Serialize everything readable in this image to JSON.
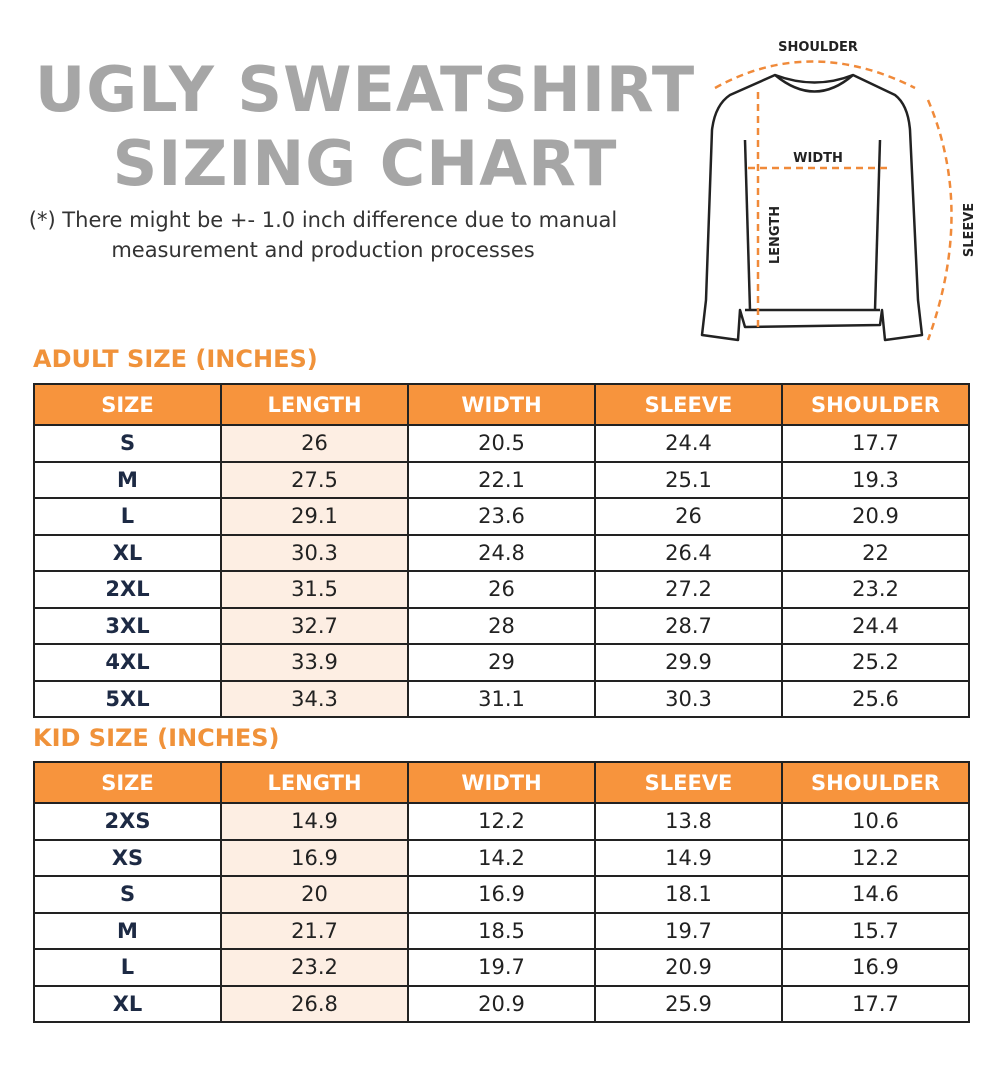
{
  "title": {
    "line1": "UGLY SWEATSHIRT",
    "line2": "SIZING CHART"
  },
  "note": "(*) There might be +- 1.0 inch difference due to manual measurement and production processes",
  "diagram": {
    "shoulder": "SHOULDER",
    "width": "WIDTH",
    "length": "LENGTH",
    "sleeve": "SLEEVE"
  },
  "colors": {
    "accent": "#f7943d",
    "title_gray": "#a6a6a6",
    "length_column": "#fdeee3"
  },
  "columns": [
    "SIZE",
    "LENGTH",
    "WIDTH",
    "SLEEVE",
    "SHOULDER"
  ],
  "adult": {
    "title": "ADULT SIZE (INCHES)",
    "rows": [
      [
        "S",
        "26",
        "20.5",
        "24.4",
        "17.7"
      ],
      [
        "M",
        "27.5",
        "22.1",
        "25.1",
        "19.3"
      ],
      [
        "L",
        "29.1",
        "23.6",
        "26",
        "20.9"
      ],
      [
        "XL",
        "30.3",
        "24.8",
        "26.4",
        "22"
      ],
      [
        "2XL",
        "31.5",
        "26",
        "27.2",
        "23.2"
      ],
      [
        "3XL",
        "32.7",
        "28",
        "28.7",
        "24.4"
      ],
      [
        "4XL",
        "33.9",
        "29",
        "29.9",
        "25.2"
      ],
      [
        "5XL",
        "34.3",
        "31.1",
        "30.3",
        "25.6"
      ]
    ]
  },
  "kid": {
    "title": "KID SIZE (INCHES)",
    "rows": [
      [
        "2XS",
        "14.9",
        "12.2",
        "13.8",
        "10.6"
      ],
      [
        "XS",
        "16.9",
        "14.2",
        "14.9",
        "12.2"
      ],
      [
        "S",
        "20",
        "16.9",
        "18.1",
        "14.6"
      ],
      [
        "M",
        "21.7",
        "18.5",
        "19.7",
        "15.7"
      ],
      [
        "L",
        "23.2",
        "19.7",
        "20.9",
        "16.9"
      ],
      [
        "XL",
        "26.8",
        "20.9",
        "25.9",
        "17.7"
      ]
    ]
  }
}
